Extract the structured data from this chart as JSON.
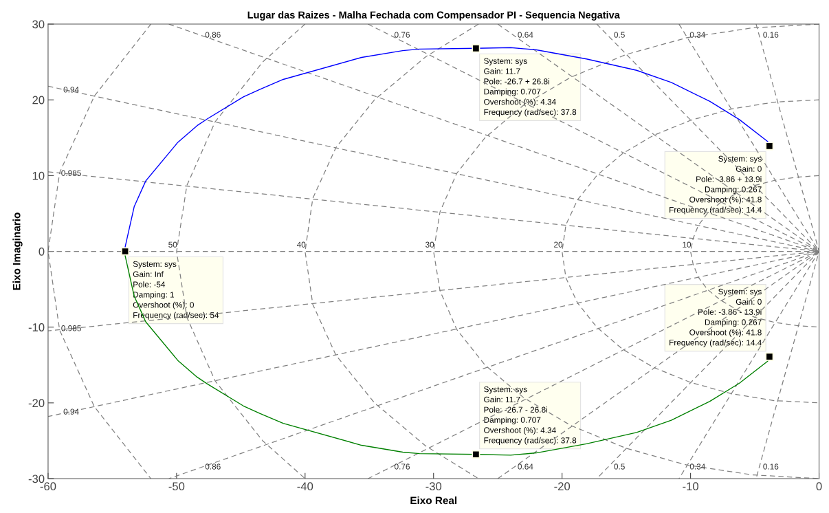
{
  "chart_data": {
    "type": "line",
    "title": "Lugar das Raizes - Malha Fechada com Compensador PI - Sequencia Negativa",
    "xlabel": "Eixo Real",
    "ylabel": "Eixo Imaginario",
    "xlim": [
      -60,
      0
    ],
    "ylim": [
      -30,
      30
    ],
    "xticks": [
      -60,
      -50,
      -40,
      -30,
      -20,
      -10,
      0
    ],
    "yticks": [
      -30,
      -20,
      -10,
      0,
      10,
      20,
      30
    ],
    "grid": false,
    "legend": false,
    "marker": "none",
    "line_style": "solid",
    "ref_lines": [
      {
        "axis": "y",
        "value": 0,
        "color": "#808080",
        "line_style": "dashed"
      }
    ],
    "series": [
      {
        "color": "#0000ff",
        "x": [
          -54.0,
          -54.0,
          -53.3,
          -52.4,
          -49.9,
          -48.4,
          -47.6,
          -44.8,
          -43.5,
          -41.7,
          -35.6,
          -32.4,
          -31.1,
          -26.7,
          -24.0,
          -22.0,
          -18.1,
          -14.2,
          -11.5,
          -8.5,
          -6.2,
          -4.0,
          -3.86
        ],
        "values": [
          0,
          0.6,
          5.9,
          9.3,
          14.4,
          16.6,
          17.5,
          20.4,
          21.4,
          22.7,
          25.6,
          26.5,
          26.7,
          26.8,
          26.9,
          26.6,
          25.4,
          23.9,
          22.3,
          19.8,
          17.4,
          14.5,
          13.9
        ]
      },
      {
        "color": "#008000",
        "x": [
          -54.0,
          -54.0,
          -53.3,
          -52.4,
          -49.9,
          -48.4,
          -47.6,
          -44.8,
          -43.5,
          -41.7,
          -35.6,
          -32.4,
          -31.1,
          -26.7,
          -24.0,
          -22.0,
          -18.1,
          -14.2,
          -11.5,
          -8.5,
          -6.2,
          -4.0,
          -3.86
        ],
        "values": [
          0,
          -0.6,
          -5.9,
          -9.3,
          -14.4,
          -16.6,
          -17.5,
          -20.4,
          -21.4,
          -22.7,
          -25.6,
          -26.5,
          -26.7,
          -26.8,
          -26.9,
          -26.6,
          -25.4,
          -23.9,
          -22.3,
          -19.8,
          -17.4,
          -14.5,
          -13.9
        ]
      },
      {
        "name": "10",
        "color": "#808080",
        "line_style": "dashed",
        "x": [
          0,
          -1.7,
          -3.4,
          -5,
          -6.4,
          -7.7,
          -8.7,
          -9.4,
          -9.8,
          -10,
          -9.8,
          -9.4,
          -8.7,
          -7.7,
          -6.4,
          -5,
          -3.4,
          -1.7,
          0
        ],
        "values": [
          10,
          9.8,
          9.4,
          8.7,
          7.7,
          6.4,
          5,
          3.4,
          1.7,
          0,
          -1.7,
          -3.4,
          -5,
          -6.4,
          -7.7,
          -8.7,
          -9.4,
          -9.8,
          -10
        ]
      },
      {
        "name": "20",
        "color": "#808080",
        "line_style": "dashed",
        "x": [
          0,
          -3.5,
          -6.8,
          -10,
          -12.9,
          -15.3,
          -17.3,
          -18.8,
          -19.7,
          -20,
          -19.7,
          -18.8,
          -17.3,
          -15.3,
          -12.9,
          -10,
          -6.8,
          -3.5,
          0
        ],
        "values": [
          20,
          19.7,
          18.8,
          17.3,
          15.3,
          12.9,
          10,
          6.8,
          3.5,
          0,
          -3.5,
          -6.8,
          -10,
          -12.9,
          -15.3,
          -17.3,
          -18.8,
          -19.7,
          -20
        ]
      },
      {
        "name": "30",
        "color": "#808080",
        "line_style": "dashed",
        "x": [
          0,
          -5.2,
          -10.3,
          -15,
          -19.3,
          -23,
          -26,
          -28.2,
          -29.5,
          -30,
          -29.5,
          -28.2,
          -26,
          -23,
          -19.3,
          -15,
          -10.3,
          -5.2,
          0
        ],
        "values": [
          30,
          29.5,
          28.2,
          26,
          23,
          19.3,
          15,
          10.3,
          5.2,
          0,
          -5.2,
          -10.3,
          -15,
          -19.3,
          -23,
          -26,
          -28.2,
          -29.5,
          -30
        ]
      },
      {
        "name": "40",
        "color": "#808080",
        "line_style": "dashed",
        "x": [
          -26.5,
          -30.6,
          -34.6,
          -37.6,
          -39.4,
          -40,
          -39.4,
          -37.6,
          -34.6,
          -30.6,
          -26.5
        ],
        "values": [
          30,
          25.7,
          20,
          13.7,
          7,
          0,
          -7,
          -13.7,
          -20,
          -25.7,
          -30
        ]
      },
      {
        "name": "50",
        "color": "#808080",
        "line_style": "dashed",
        "x": [
          -40,
          -43.3,
          -47,
          -49.2,
          -50,
          -49.2,
          -47,
          -43.3,
          -40
        ],
        "values": [
          30,
          25,
          17.1,
          8.7,
          0,
          -8.7,
          -17.1,
          -25,
          -30
        ]
      },
      {
        "color": "#808080",
        "line_style": "dashed",
        "x": [
          -52,
          -56.4,
          -59.1,
          -60,
          -59.1,
          -56.4,
          -52
        ],
        "values": [
          30,
          20.5,
          10.4,
          0,
          -10.4,
          -20.5,
          -30
        ]
      },
      {
        "name": "0.16",
        "color": "#808080",
        "line_style": "dashed",
        "x": [
          -4.9,
          0,
          -4.9
        ],
        "values": [
          30,
          0,
          -30
        ]
      },
      {
        "name": "0.34",
        "color": "#808080",
        "line_style": "dashed",
        "x": [
          -10.9,
          0,
          -10.9
        ],
        "values": [
          30,
          0,
          -30
        ]
      },
      {
        "name": "0.5",
        "color": "#808080",
        "line_style": "dashed",
        "x": [
          -17.3,
          0,
          -17.3
        ],
        "values": [
          30,
          0,
          -30
        ]
      },
      {
        "name": "0.64",
        "color": "#808080",
        "line_style": "dashed",
        "x": [
          -25,
          0,
          -25
        ],
        "values": [
          30,
          0,
          -30
        ]
      },
      {
        "name": "0.76",
        "color": "#808080",
        "line_style": "dashed",
        "x": [
          -35.1,
          0,
          -35.1
        ],
        "values": [
          30,
          0,
          -30
        ]
      },
      {
        "name": "0.86",
        "color": "#808080",
        "line_style": "dashed",
        "x": [
          -50.6,
          0,
          -50.6
        ],
        "values": [
          30,
          0,
          -30
        ]
      },
      {
        "name": "0.94",
        "color": "#808080",
        "line_style": "dashed",
        "x": [
          -60,
          0,
          -60
        ],
        "values": [
          21.8,
          0,
          -21.8
        ]
      },
      {
        "name": "0.985",
        "color": "#808080",
        "line_style": "dashed",
        "x": [
          -60,
          0,
          -60
        ],
        "values": [
          10.5,
          0,
          -10.5
        ]
      },
      {
        "type": "scatter",
        "color": "#000000",
        "marker": "square",
        "x": [
          -54,
          -26.7,
          -3.86,
          -3.86,
          -26.7
        ],
        "values": [
          0,
          26.8,
          13.9,
          -13.9,
          -26.8
        ]
      }
    ],
    "annotations": [
      {
        "text": "System: sys\nGain: Inf\nPole: -54\nDamping: 1\nOvershoot (%): 0\nFrequency (rad/sec): 54",
        "x": -54,
        "y": 0
      },
      {
        "text": "System: sys\nGain: 11.7\nPole: -26.7 + 26.8i\nDamping: 0.707\nOvershoot (%): 4.34\nFrequency (rad/sec): 37.8",
        "x": -26.7,
        "y": 26.8
      },
      {
        "text": "System: sys\nGain: 0\nPole: -3.86 + 13.9i\nDamping: 0.267\nOvershoot (%): 41.8\nFrequency (rad/sec): 14.4",
        "x": -3.86,
        "y": 13.9
      },
      {
        "text": "System: sys\nGain: 0\nPole: -3.86 - 13.9i\nDamping: 0.267\nOvershoot (%): 41.8\nFrequency (rad/sec): 14.4",
        "x": -3.86,
        "y": -13.9
      },
      {
        "text": "System: sys\nGain: 11.7\nPole: -26.7 - 26.8i\nDamping: 0.707\nOvershoot (%): 4.34\nFrequency (rad/sec): 37.8",
        "x": -26.7,
        "y": -26.8
      }
    ]
  }
}
